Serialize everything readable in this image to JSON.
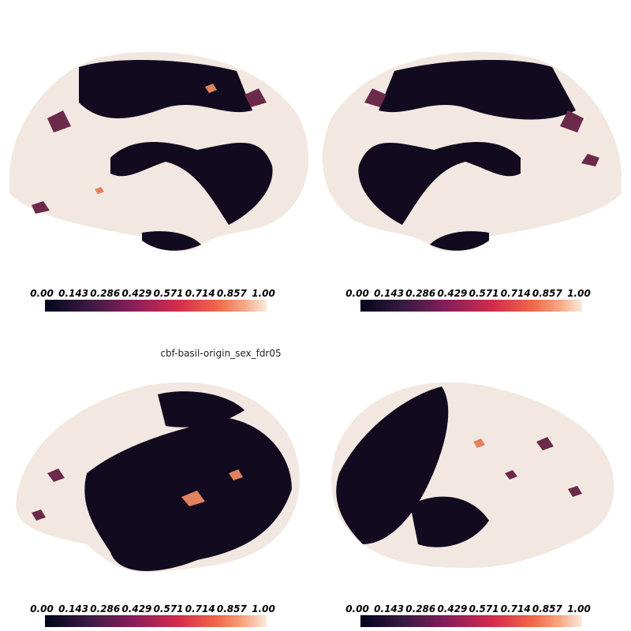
{
  "title": "cbf-basil-origin_sex_fdr05",
  "colorbars": [
    {
      "ticks": [
        "0.00",
        "0.143",
        "0.286",
        "0.429",
        "0.571",
        "0.714",
        "0.857",
        "1.00"
      ]
    },
    {
      "ticks": [
        "0.00",
        "0.143",
        "0.286",
        "0.429",
        "0.571",
        "0.714",
        "0.857",
        "1.00"
      ]
    },
    {
      "ticks": [
        "0.00",
        "0.143",
        "0.286",
        "0.429",
        "0.571",
        "0.714",
        "0.857",
        "1.00"
      ]
    },
    {
      "ticks": [
        "0.00",
        "0.143",
        "0.286",
        "0.429",
        "0.571",
        "0.714",
        "0.857",
        "1.00"
      ]
    }
  ]
}
